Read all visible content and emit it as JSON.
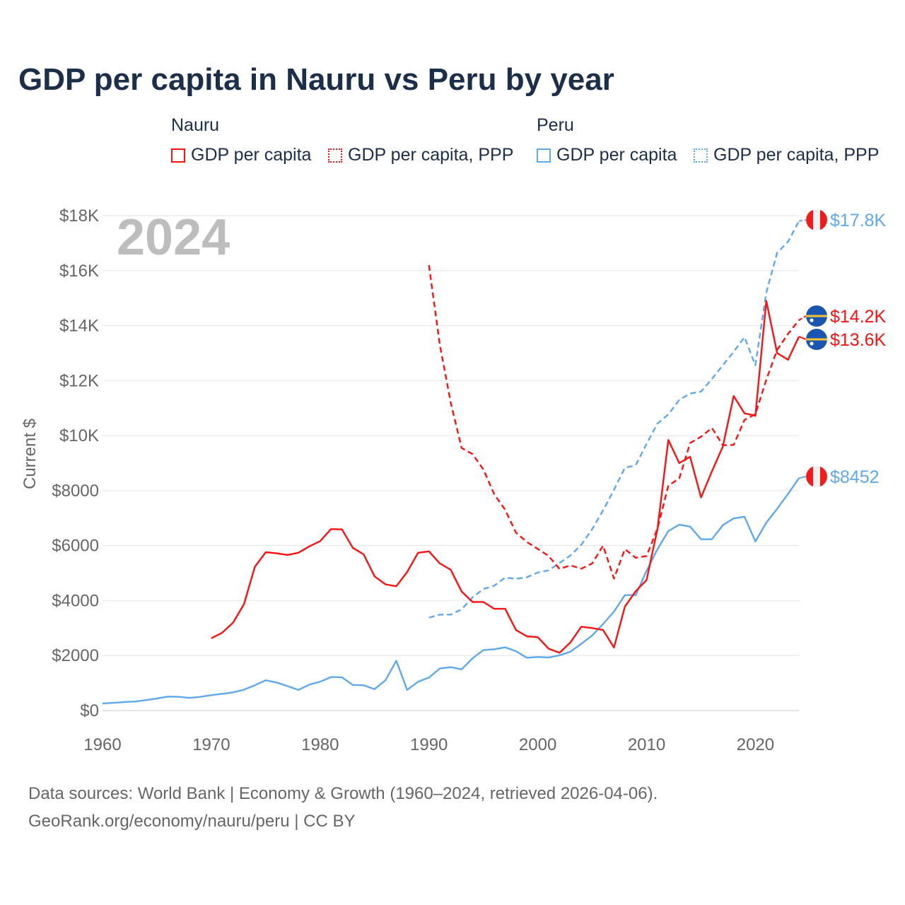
{
  "chart_data": {
    "type": "line",
    "title": "GDP per capita in Nauru vs Peru by year",
    "ylabel": "Current $",
    "xlabel": "",
    "xlim": [
      1960,
      2024
    ],
    "ylim": [
      0,
      18000
    ],
    "x_ticks": [
      1960,
      1970,
      1980,
      1990,
      2000,
      2010,
      2020
    ],
    "x_tick_labels": [
      "1960",
      "1970",
      "1980",
      "1990",
      "2000",
      "2010",
      "2020"
    ],
    "y_ticks": [
      0,
      2000,
      4000,
      6000,
      8000,
      10000,
      12000,
      14000,
      16000,
      18000
    ],
    "y_tick_labels": [
      "$0",
      "$2000",
      "$4000",
      "$6000",
      "$8000",
      "$10K",
      "$12K",
      "$14K",
      "$16K",
      "$18K"
    ],
    "grid": true,
    "current_year": "2024",
    "legend": {
      "placement": "top",
      "groups": [
        {
          "name": "Nauru",
          "items": [
            "GDP per capita",
            "GDP per capita, PPP"
          ]
        },
        {
          "name": "Peru",
          "items": [
            "GDP per capita",
            "GDP per capita, PPP"
          ]
        }
      ]
    },
    "series": [
      {
        "name": "Nauru GDP per capita",
        "country": "Nauru",
        "color": "#ff1010",
        "dash": false,
        "end_label": "$13.6K",
        "start": 1970,
        "values": [
          2630,
          2830,
          3200,
          3870,
          5230,
          5760,
          5720,
          5660,
          5740,
          5970,
          6160,
          6600,
          6590,
          5920,
          5680,
          4880,
          4590,
          4520,
          5040,
          5740,
          5790,
          5350,
          5120,
          4330,
          3950,
          3950,
          3700,
          3700,
          2930,
          2700,
          2670,
          2250,
          2100,
          2480,
          3050,
          3000,
          2930,
          2290,
          3780,
          4340,
          4750,
          6600,
          9840,
          9000,
          9230,
          7750,
          8700,
          9600,
          11440,
          10810,
          10720,
          14900,
          13000,
          12760,
          13600
        ]
      },
      {
        "name": "Nauru GDP per capita, PPP",
        "country": "Nauru",
        "color": "#ff1010",
        "dash": true,
        "end_label": "$14.2K",
        "start": 1990,
        "values": [
          16200,
          13300,
          11200,
          9550,
          9330,
          8770,
          7860,
          7300,
          6470,
          6130,
          5880,
          5620,
          5150,
          5280,
          5160,
          5350,
          6000,
          4800,
          5870,
          5560,
          5620,
          6620,
          8180,
          8440,
          9730,
          9960,
          10280,
          9650,
          9660,
          10570,
          10780,
          12030,
          13120,
          13700,
          14200
        ]
      },
      {
        "name": "Peru GDP per capita",
        "country": "Peru",
        "color": "#5ea8ee",
        "dash": false,
        "end_label": "$8452",
        "start": 1960,
        "values": [
          260,
          280,
          310,
          330,
          380,
          440,
          510,
          500,
          460,
          500,
          560,
          610,
          660,
          760,
          920,
          1100,
          1020,
          890,
          750,
          940,
          1050,
          1220,
          1210,
          930,
          920,
          780,
          1100,
          1810,
          750,
          1050,
          1200,
          1530,
          1580,
          1500,
          1900,
          2200,
          2230,
          2300,
          2160,
          1920,
          1950,
          1930,
          2010,
          2140,
          2430,
          2730,
          3150,
          3600,
          4200,
          4200,
          5080,
          5870,
          6530,
          6760,
          6690,
          6230,
          6230,
          6740,
          6990,
          7050,
          6150,
          6830,
          7340,
          7880,
          8452
        ]
      },
      {
        "name": "Peru GDP per capita, PPP",
        "country": "Peru",
        "color": "#5ea8ee",
        "dash": true,
        "end_label": "$17.8K",
        "start": 1990,
        "values": [
          3380,
          3490,
          3490,
          3680,
          4120,
          4420,
          4540,
          4840,
          4790,
          4850,
          5020,
          5100,
          5370,
          5640,
          6030,
          6600,
          7280,
          8030,
          8830,
          8920,
          9700,
          10440,
          10770,
          11300,
          11530,
          11600,
          12060,
          12560,
          13050,
          13580,
          12560,
          15200,
          16650,
          17050,
          17800
        ]
      }
    ]
  },
  "footer": {
    "line1": "Data sources: World Bank | Economy & Growth (1960–2024, retrieved 2026-04-06).",
    "line2": "GeoRank.org/economy/nauru/peru | CC BY"
  }
}
